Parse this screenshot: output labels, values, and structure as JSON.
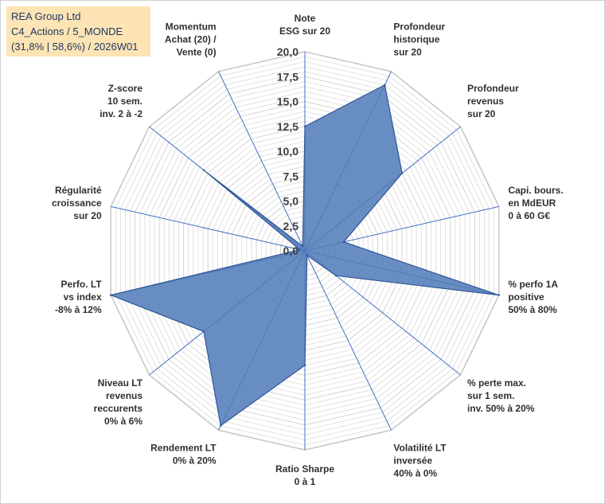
{
  "info": {
    "title": "REA Group Ltd",
    "line2": "C4_Actions / 5_MONDE",
    "line3": "(31,8% | 58,6%) / 2026W01"
  },
  "chart_data": {
    "type": "radar",
    "title": "REA Group Ltd",
    "rlim": [
      0,
      20
    ],
    "ticks": [
      "0,0",
      "2,5",
      "5,0",
      "7,5",
      "10,0",
      "12,5",
      "15,0",
      "17,5",
      "20,0"
    ],
    "grid": true,
    "axes": [
      {
        "lines": [
          "Note",
          "ESG sur 20"
        ],
        "value": 12.5
      },
      {
        "lines": [
          "Profondeur",
          "historique",
          "sur 20"
        ],
        "value": 18.5
      },
      {
        "lines": [
          "Profondeur",
          "revenus",
          "sur 20"
        ],
        "value": 12.5
      },
      {
        "lines": [
          "Capi. bours.",
          "en MdEUR",
          "0 à 60 G€"
        ],
        "value": 4.0
      },
      {
        "lines": [
          "% perfo 1A",
          "positive",
          "50% à 80%"
        ],
        "value": 20.0
      },
      {
        "lines": [
          "% perte max.",
          "sur 1 sem.",
          "inv. 50% à 20%"
        ],
        "value": 4.0
      },
      {
        "lines": [
          "Volatilité LT",
          "inversée",
          "40% à 0%"
        ],
        "value": 0.5
      },
      {
        "lines": [
          "Ratio Sharpe",
          "0 à 1"
        ],
        "value": 11.5
      },
      {
        "lines": [
          "Rendement LT",
          "0% à 20%"
        ],
        "value": 19.5
      },
      {
        "lines": [
          "Niveau LT",
          "revenus",
          "reccurents",
          "0% à 6%"
        ],
        "value": 13.0
      },
      {
        "lines": [
          "Perfo. LT",
          "vs index",
          "-8% à 12%"
        ],
        "value": 20.0
      },
      {
        "lines": [
          "Régularité",
          "croissance",
          "sur 20"
        ],
        "value": 0.5
      },
      {
        "lines": [
          "Z-score",
          "10 sem.",
          "inv. 2 à -2"
        ],
        "value": 13.0
      },
      {
        "lines": [
          "Momentum",
          "Achat (20) /",
          "Vente (0)"
        ],
        "value": 0.5
      }
    ],
    "colors": {
      "fill": "#4f7ab8",
      "stroke": "#2f5597",
      "grid": "#d9d9d9",
      "axis": "#4472c4"
    }
  }
}
